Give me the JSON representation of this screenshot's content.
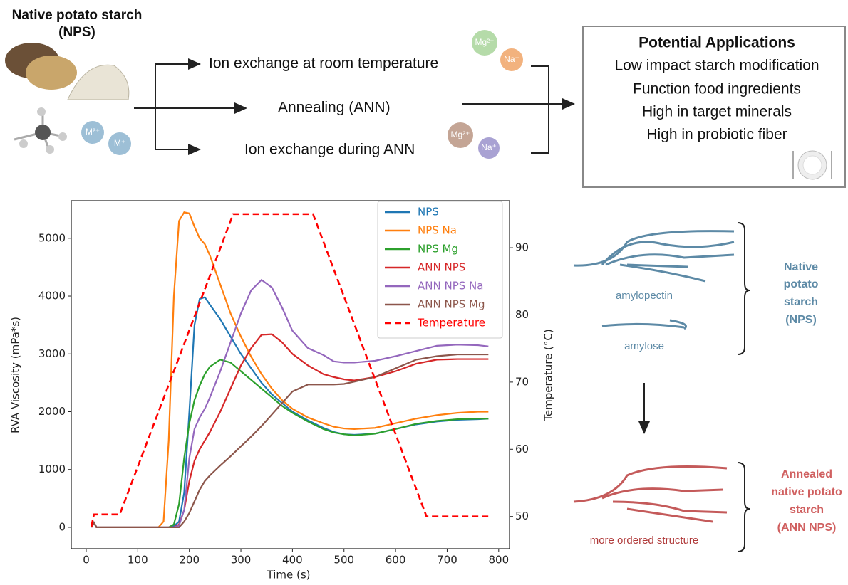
{
  "diagram": {
    "source": {
      "title": "Native potato starch",
      "abbr": "(NPS)",
      "ions": [
        "M²⁺",
        "M⁺"
      ]
    },
    "routes": [
      {
        "label": "Ion exchange at room temperature",
        "ions": [
          "Mg²⁺",
          "Na⁺"
        ]
      },
      {
        "label": "Annealing (ANN)"
      },
      {
        "label": "Ion exchange during ANN",
        "ions": [
          "Mg²⁺",
          "Na⁺"
        ]
      }
    ],
    "applications": {
      "title": "Potential Applications",
      "items": [
        "Low impact starch modification",
        "Function food ingredients",
        "High in target minerals",
        "High in probiotic fiber"
      ]
    },
    "structures": {
      "native": {
        "labels": [
          "amylopectin",
          "amylose"
        ],
        "name": [
          "Native",
          "potato",
          "starch",
          "(NPS)"
        ]
      },
      "annealed": {
        "labels": [
          "more ordered structure"
        ],
        "name": [
          "Annealed",
          "native potato",
          "starch",
          "(ANN NPS)"
        ]
      }
    }
  },
  "chart_data": {
    "type": "line",
    "xlabel": "Time (s)",
    "ylabel": "RVA Viscosity (mPa*s)",
    "y2label": "Temperature (°C)",
    "xlim": [
      -29,
      821
    ],
    "xticks": [
      0,
      100,
      200,
      300,
      400,
      500,
      600,
      700,
      800
    ],
    "ylim": [
      -370,
      5650
    ],
    "yticks": [
      0,
      1000,
      2000,
      3000,
      4000,
      5000
    ],
    "y2lim": [
      45.2,
      97
    ],
    "y2ticks": [
      50,
      60,
      70,
      80,
      90
    ],
    "grid": false,
    "legend": "upper right",
    "x": [
      10,
      15,
      20,
      140,
      150,
      160,
      170,
      180,
      190,
      200,
      210,
      220,
      230,
      240,
      260,
      280,
      300,
      320,
      340,
      360,
      380,
      400,
      430,
      460,
      480,
      500,
      520,
      560,
      600,
      640,
      680,
      720,
      760,
      780
    ],
    "series": [
      {
        "name": "NPS",
        "color": "#1f77b4",
        "values": [
          0,
          80,
          0,
          0,
          0,
          0,
          20,
          100,
          600,
          2000,
          3500,
          3950,
          3980,
          3850,
          3600,
          3300,
          3000,
          2750,
          2500,
          2300,
          2150,
          2000,
          1850,
          1720,
          1650,
          1610,
          1600,
          1620,
          1700,
          1780,
          1830,
          1860,
          1870,
          1880
        ]
      },
      {
        "name": "NPS Na",
        "color": "#ff7f0e",
        "values": [
          0,
          80,
          0,
          0,
          100,
          1500,
          4000,
          5300,
          5450,
          5430,
          5200,
          5000,
          4900,
          4700,
          4200,
          3700,
          3300,
          2950,
          2650,
          2400,
          2200,
          2050,
          1900,
          1800,
          1740,
          1710,
          1700,
          1720,
          1800,
          1880,
          1940,
          1980,
          2000,
          2000
        ]
      },
      {
        "name": "NPS Mg",
        "color": "#2ca02c",
        "values": [
          0,
          80,
          0,
          0,
          0,
          0,
          50,
          400,
          1200,
          1800,
          2200,
          2450,
          2650,
          2780,
          2900,
          2850,
          2700,
          2550,
          2400,
          2250,
          2100,
          1980,
          1830,
          1700,
          1640,
          1610,
          1590,
          1620,
          1700,
          1790,
          1840,
          1870,
          1880,
          1880
        ]
      },
      {
        "name": "ANN NPS",
        "color": "#d62728",
        "values": [
          0,
          80,
          0,
          0,
          0,
          0,
          0,
          50,
          300,
          800,
          1150,
          1350,
          1500,
          1650,
          2000,
          2400,
          2800,
          3100,
          3330,
          3340,
          3200,
          3000,
          2800,
          2650,
          2600,
          2560,
          2540,
          2600,
          2700,
          2830,
          2900,
          2910,
          2910,
          2910
        ]
      },
      {
        "name": "ANN NPS Na",
        "color": "#9467bd",
        "values": [
          0,
          80,
          0,
          0,
          0,
          0,
          0,
          30,
          300,
          1200,
          1700,
          1900,
          2050,
          2250,
          2700,
          3200,
          3700,
          4100,
          4280,
          4150,
          3800,
          3400,
          3100,
          2980,
          2870,
          2850,
          2850,
          2880,
          2960,
          3050,
          3140,
          3160,
          3150,
          3130
        ]
      },
      {
        "name": "ANN NPS Mg",
        "color": "#8c564b",
        "values": [
          0,
          80,
          0,
          0,
          0,
          0,
          0,
          0,
          100,
          250,
          450,
          650,
          800,
          900,
          1070,
          1230,
          1400,
          1570,
          1750,
          1950,
          2150,
          2350,
          2470,
          2470,
          2470,
          2480,
          2520,
          2600,
          2750,
          2900,
          2960,
          2990,
          2990,
          2990
        ]
      },
      {
        "name": "Temperature",
        "color": "#ff0000",
        "dashed": true,
        "axis": "y2",
        "x": [
          10,
          15,
          65,
          285,
          300,
          440,
          660,
          780
        ],
        "values": [
          48.5,
          50.3,
          50.3,
          95,
          95,
          95,
          50,
          50
        ]
      }
    ]
  }
}
